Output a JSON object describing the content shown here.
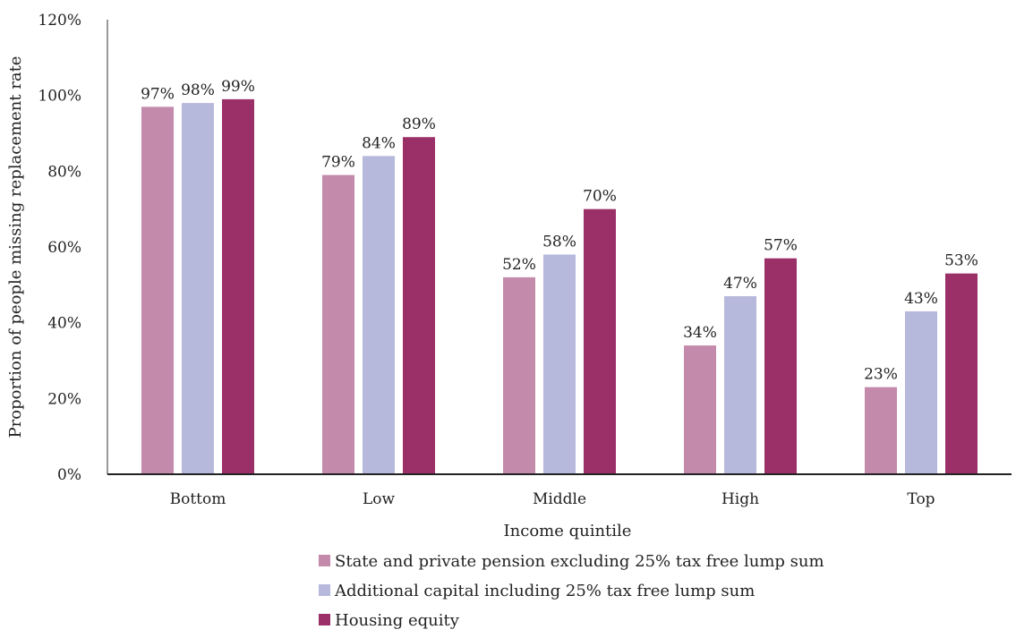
{
  "chart_data": {
    "type": "bar",
    "title": "",
    "xlabel": "Income quintile",
    "ylabel": "Proportion of people missing replacement rate",
    "ylim": [
      0,
      120
    ],
    "yticks": [
      0,
      20,
      40,
      60,
      80,
      100,
      120
    ],
    "ytick_labels": [
      "0%",
      "20%",
      "40%",
      "60%",
      "80%",
      "100%",
      "120%"
    ],
    "categories": [
      "Bottom",
      "Low",
      "Middle",
      "High",
      "Top"
    ],
    "grid": false,
    "legend_position": "bottom",
    "series": [
      {
        "name": "State and private pension excluding 25% tax free lump sum",
        "color": "#c48aab",
        "values": [
          97,
          79,
          52,
          34,
          23
        ],
        "labels": [
          "97%",
          "79%",
          "52%",
          "34%",
          "23%"
        ]
      },
      {
        "name": "Additional capital including 25% tax free lump sum",
        "color": "#b6b8dc",
        "values": [
          98,
          84,
          58,
          47,
          43
        ],
        "labels": [
          "98%",
          "84%",
          "58%",
          "47%",
          "43%"
        ]
      },
      {
        "name": "Housing equity",
        "color": "#9b3068",
        "values": [
          99,
          89,
          70,
          57,
          53
        ],
        "labels": [
          "99%",
          "89%",
          "70%",
          "57%",
          "53%"
        ]
      }
    ]
  }
}
